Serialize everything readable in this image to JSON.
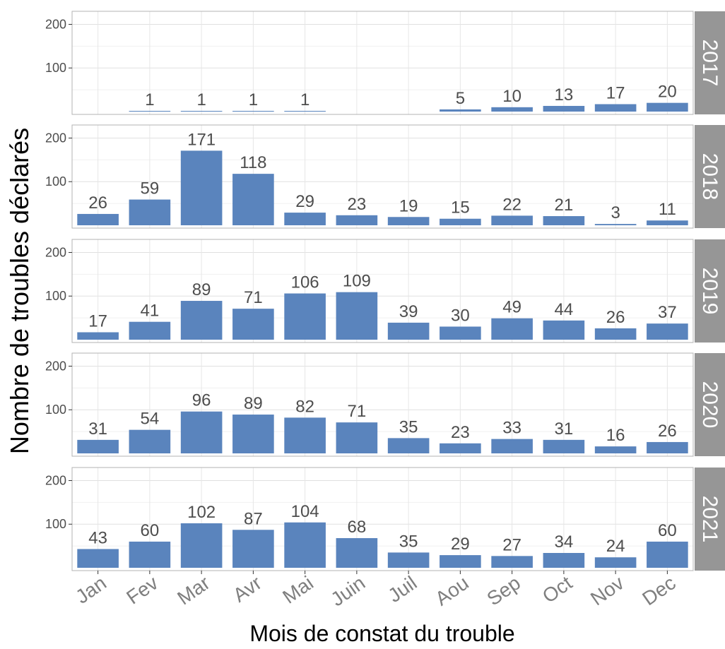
{
  "chart_data": {
    "type": "bar",
    "xlabel": "Mois de constat du trouble",
    "ylabel": "Nombre de troubles déclarés",
    "categories": [
      "Jan",
      "Fev",
      "Mar",
      "Avr",
      "Mai",
      "Juin",
      "Juil",
      "Aou",
      "Sep",
      "Oct",
      "Nov",
      "Dec"
    ],
    "yticks": [
      100,
      200
    ],
    "ylim": [
      0,
      230
    ],
    "grid": true,
    "bar_color": "#5a84bd",
    "strip_color": "#969696",
    "panels": [
      {
        "year": "2017",
        "values": [
          null,
          1,
          1,
          1,
          1,
          null,
          null,
          5,
          10,
          13,
          17,
          20
        ]
      },
      {
        "year": "2018",
        "values": [
          26,
          59,
          171,
          118,
          29,
          23,
          19,
          15,
          22,
          21,
          3,
          11
        ]
      },
      {
        "year": "2019",
        "values": [
          17,
          41,
          89,
          71,
          106,
          109,
          39,
          30,
          49,
          44,
          26,
          37
        ]
      },
      {
        "year": "2020",
        "values": [
          31,
          54,
          96,
          89,
          82,
          71,
          35,
          23,
          33,
          31,
          16,
          26
        ]
      },
      {
        "year": "2021",
        "values": [
          43,
          60,
          102,
          87,
          104,
          68,
          35,
          29,
          27,
          34,
          24,
          60
        ]
      }
    ]
  }
}
